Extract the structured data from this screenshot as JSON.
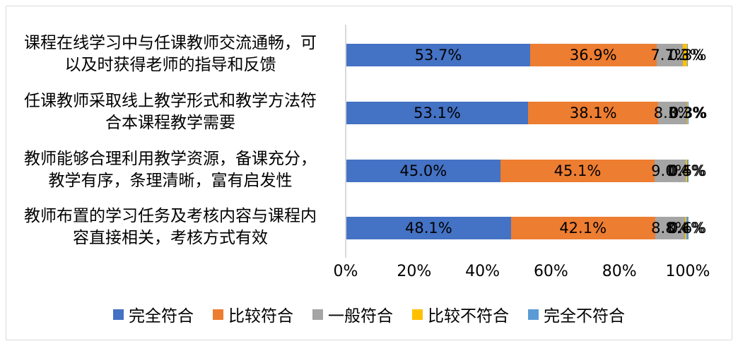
{
  "frame": {
    "border_color": "#d9d9d9"
  },
  "chart_data": {
    "type": "bar",
    "orientation": "horizontal",
    "stacked": true,
    "title": "",
    "xlabel": "",
    "ylabel": "",
    "xlim": [
      0,
      100
    ],
    "grid": false,
    "legend_position": "bottom",
    "x_ticks": [
      "0%",
      "20%",
      "40%",
      "60%",
      "80%",
      "100%"
    ],
    "categories": [
      "课程在线学习中与任课教师交流通畅，可\n以及时获得老师的指导和反馈",
      "任课教师采取线上教学形式和教学方法符\n合本课程教学需要",
      "教师能够合理利用教学资源，备课充分，\n教学有序，条理清晰，富有启发性",
      "教师布置的学习任务及考核内容与课程内\n容直接相关，考核方式有效"
    ],
    "series": [
      {
        "name": "完全符合",
        "color": "#4472c4",
        "values": [
          53.7,
          53.1,
          45.0,
          48.1
        ]
      },
      {
        "name": "比较符合",
        "color": "#ed7d31",
        "values": [
          36.9,
          38.1,
          45.1,
          42.1
        ]
      },
      {
        "name": "一般符合",
        "color": "#a5a5a5",
        "values": [
          7.7,
          8.3,
          9.0,
          8.8
        ]
      },
      {
        "name": "比较不符合",
        "color": "#ffc000",
        "values": [
          1.3,
          0.3,
          0.4,
          0.4
        ]
      },
      {
        "name": "完全不符合",
        "color": "#5b9bd5",
        "values": [
          0.3,
          0.3,
          0.5,
          0.6
        ]
      }
    ],
    "data_label_format": "one_decimal_percent"
  }
}
